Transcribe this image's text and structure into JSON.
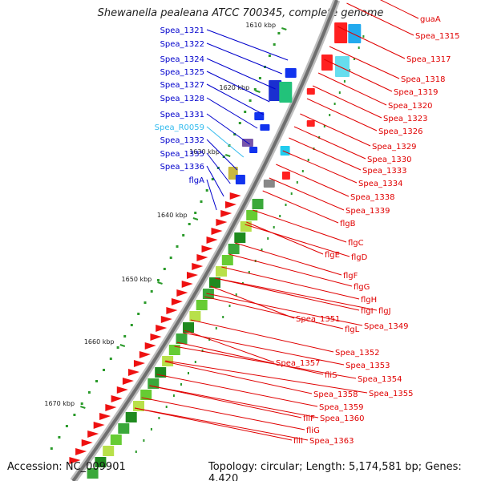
{
  "title": "Shewanella pealeana ATCC 700345, complete genome",
  "footer": {
    "accession": "Accession: NC_009901",
    "topology": "Topology: circular; Length: 5,174,581 bp; Genes: 4,420"
  },
  "colors": {
    "plus_strand_label": "#0000cc",
    "minus_strand_label": "#e00000",
    "rna_label": "#33bbee",
    "backbone": "#888888"
  },
  "kbp_ticks": [
    {
      "label": "1610 kbp"
    },
    {
      "label": "1620 kbp"
    },
    {
      "label": "1630 kbp"
    },
    {
      "label": "1640 kbp"
    },
    {
      "label": "1650 kbp"
    },
    {
      "label": "1660 kbp"
    },
    {
      "label": "1670 kbp"
    }
  ],
  "left_labels": [
    {
      "text": "Spea_1321",
      "kind": "plus"
    },
    {
      "text": "Spea_1322",
      "kind": "plus"
    },
    {
      "text": "Spea_1324",
      "kind": "plus"
    },
    {
      "text": "Spea_1325",
      "kind": "plus"
    },
    {
      "text": "Spea_1327",
      "kind": "plus"
    },
    {
      "text": "Spea_1328",
      "kind": "plus"
    },
    {
      "text": "Spea_1331",
      "kind": "plus"
    },
    {
      "text": "Spea_R0059",
      "kind": "rna"
    },
    {
      "text": "Spea_1332",
      "kind": "plus"
    },
    {
      "text": "Spea_1335",
      "kind": "plus"
    },
    {
      "text": "Spea_1336",
      "kind": "plus"
    },
    {
      "text": "flgA",
      "kind": "plus"
    }
  ],
  "right_labels": [
    {
      "text": "guaA"
    },
    {
      "text": "Spea_1315"
    },
    {
      "text": "Spea_1317"
    },
    {
      "text": "Spea_1318"
    },
    {
      "text": "Spea_1319"
    },
    {
      "text": "Spea_1320"
    },
    {
      "text": "Spea_1323"
    },
    {
      "text": "Spea_1326"
    },
    {
      "text": "Spea_1329"
    },
    {
      "text": "Spea_1330"
    },
    {
      "text": "Spea_1333"
    },
    {
      "text": "Spea_1334"
    },
    {
      "text": "Spea_1338"
    },
    {
      "text": "Spea_1339"
    },
    {
      "text": "flgB"
    },
    {
      "text": "flgC"
    },
    {
      "text": "flgE"
    },
    {
      "text": "flgD"
    },
    {
      "text": "flgF"
    },
    {
      "text": "flgG"
    },
    {
      "text": "flgH"
    },
    {
      "text": "flgI"
    },
    {
      "text": "flgJ"
    },
    {
      "text": "Spea_1351"
    },
    {
      "text": "Spea_1349"
    },
    {
      "text": "flgL"
    },
    {
      "text": "Spea_1352"
    },
    {
      "text": "Spea_1357"
    },
    {
      "text": "Spea_1353"
    },
    {
      "text": "fliS"
    },
    {
      "text": "Spea_1354"
    },
    {
      "text": "Spea_1355"
    },
    {
      "text": "Spea_1358"
    },
    {
      "text": "Spea_1359"
    },
    {
      "text": "fliF"
    },
    {
      "text": "Spea_1360"
    },
    {
      "text": "fliG"
    },
    {
      "text": "fliI"
    },
    {
      "text": "Spea_1363"
    }
  ]
}
